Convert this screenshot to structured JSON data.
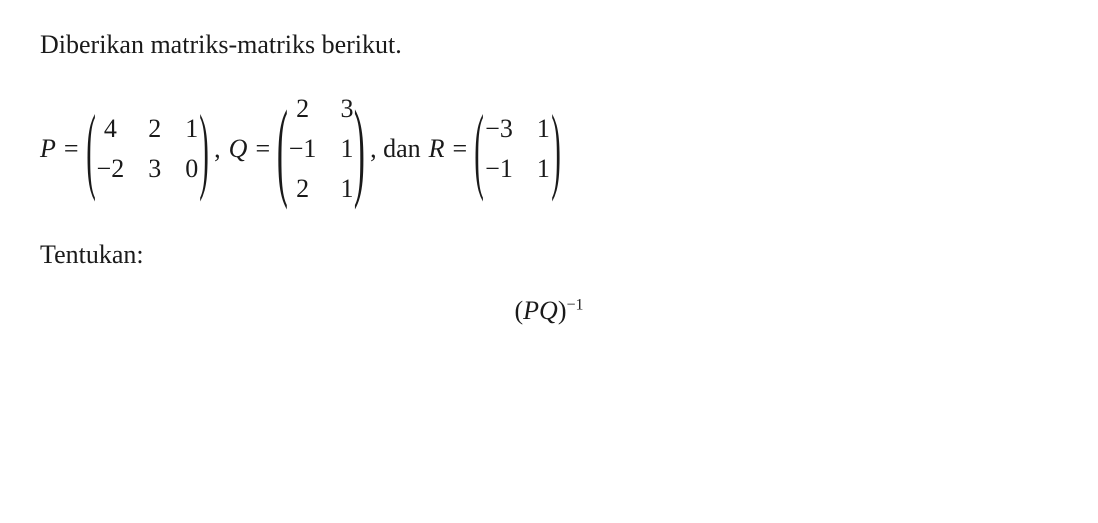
{
  "intro_text": "Diberikan matriks-matriks berikut.",
  "matrices": {
    "P": {
      "var": "P",
      "eq": "=",
      "rows": 2,
      "cols": 3,
      "values": [
        "4",
        "2",
        "1",
        "−2",
        "3",
        "0"
      ],
      "after": ","
    },
    "Q": {
      "var": "Q",
      "eq": "=",
      "rows": 3,
      "cols": 2,
      "values": [
        "2",
        "3",
        "−1",
        "1",
        "2",
        "1"
      ],
      "after": ", dan"
    },
    "R": {
      "var": "R",
      "eq": "=",
      "rows": 2,
      "cols": 2,
      "values": [
        "−3",
        "1",
        "−1",
        "1"
      ],
      "after": ""
    }
  },
  "tentukan_text": "Tentukan:",
  "result": {
    "lparen": "(",
    "expr": "PQ",
    "rparen": ")",
    "exponent": "−1"
  },
  "style": {
    "text_color": "#1a1a1a",
    "background": "#ffffff",
    "font_family": "Times New Roman",
    "base_fontsize_pt": 20
  }
}
